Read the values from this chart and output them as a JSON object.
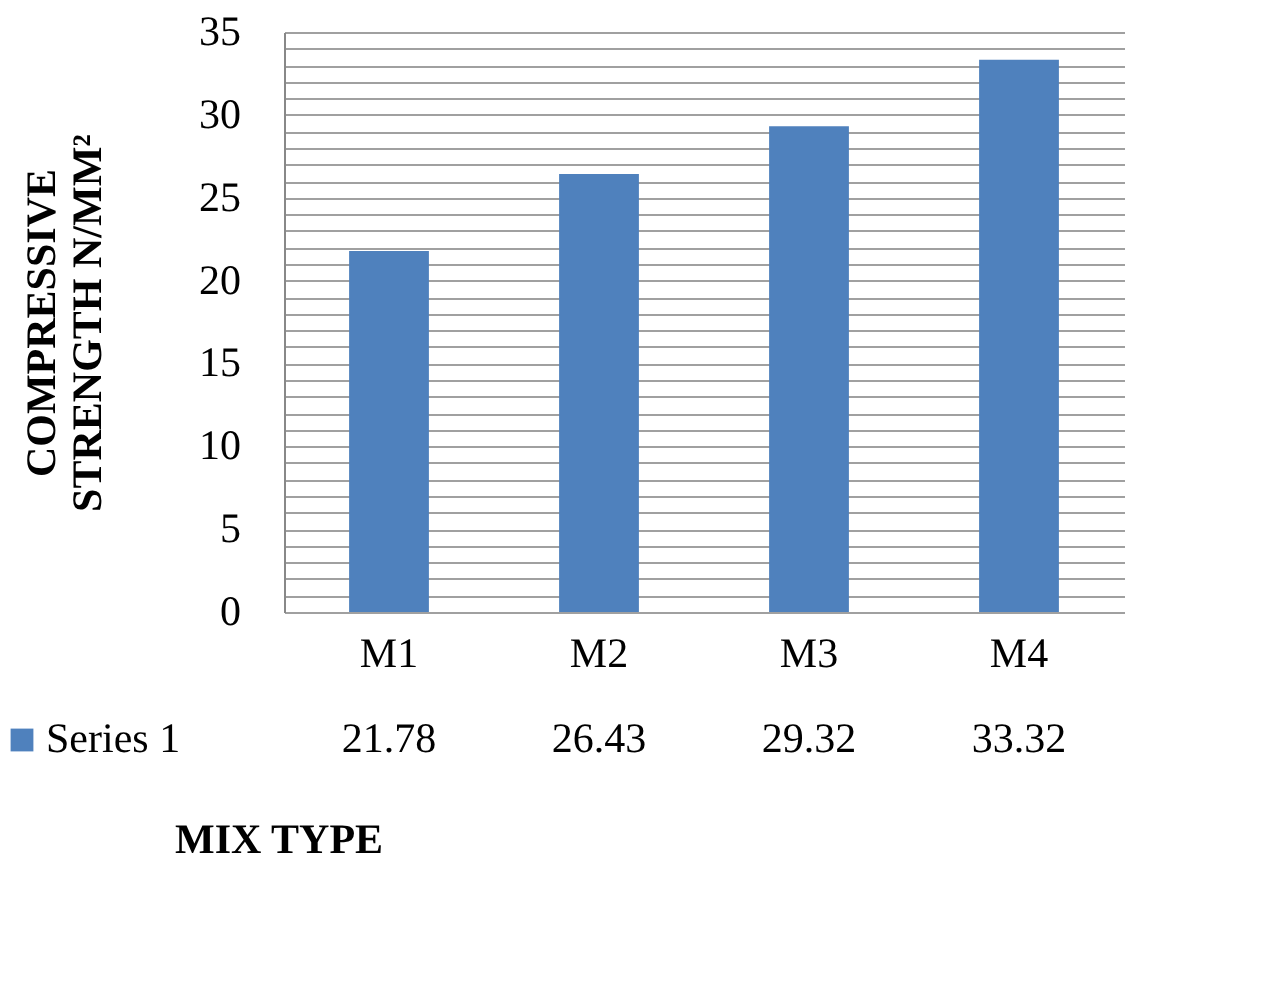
{
  "chart_data": {
    "type": "bar",
    "categories": [
      "M1",
      "M2",
      "M3",
      "M4"
    ],
    "series": [
      {
        "name": "Series 1",
        "color": "#4f81bd",
        "values": [
          21.78,
          26.43,
          29.32,
          33.32
        ]
      }
    ],
    "xlabel": "MIX TYPE",
    "ylabel": "COMPRESSIVE STRENGTH N/MM²",
    "ylim": [
      0,
      35
    ],
    "yticks": [
      0,
      {
        "value": 1,
        "label": null
      },
      {
        "value": 2,
        "label": null
      },
      {
        "value": 3,
        "label": null
      },
      {
        "value": 4,
        "label": null
      },
      5,
      {
        "value": 6,
        "label": null
      },
      {
        "value": 7,
        "label": null
      },
      {
        "value": 8,
        "label": null
      },
      {
        "value": 9,
        "label": null
      },
      10,
      {
        "value": 11,
        "label": null
      },
      {
        "value": 12,
        "label": null
      },
      {
        "value": 13,
        "label": null
      },
      {
        "value": 14,
        "label": null
      },
      15,
      {
        "value": 16,
        "label": null
      },
      {
        "value": 17,
        "label": null
      },
      {
        "value": 18,
        "label": null
      },
      {
        "value": 19,
        "label": null
      },
      20,
      {
        "value": 21,
        "label": null
      },
      {
        "value": 22,
        "label": null
      },
      {
        "value": 23,
        "label": null
      },
      {
        "value": 24,
        "label": null
      },
      25,
      {
        "value": 26,
        "label": null
      },
      {
        "value": 27,
        "label": null
      },
      {
        "value": 28,
        "label": null
      },
      {
        "value": 29,
        "label": null
      },
      30,
      {
        "value": 31,
        "label": null
      },
      {
        "value": 32,
        "label": null
      },
      {
        "value": 33,
        "label": null
      },
      {
        "value": 34,
        "label": null
      },
      35
    ],
    "grid": "y",
    "legend": "bottom",
    "data_labels": true
  }
}
